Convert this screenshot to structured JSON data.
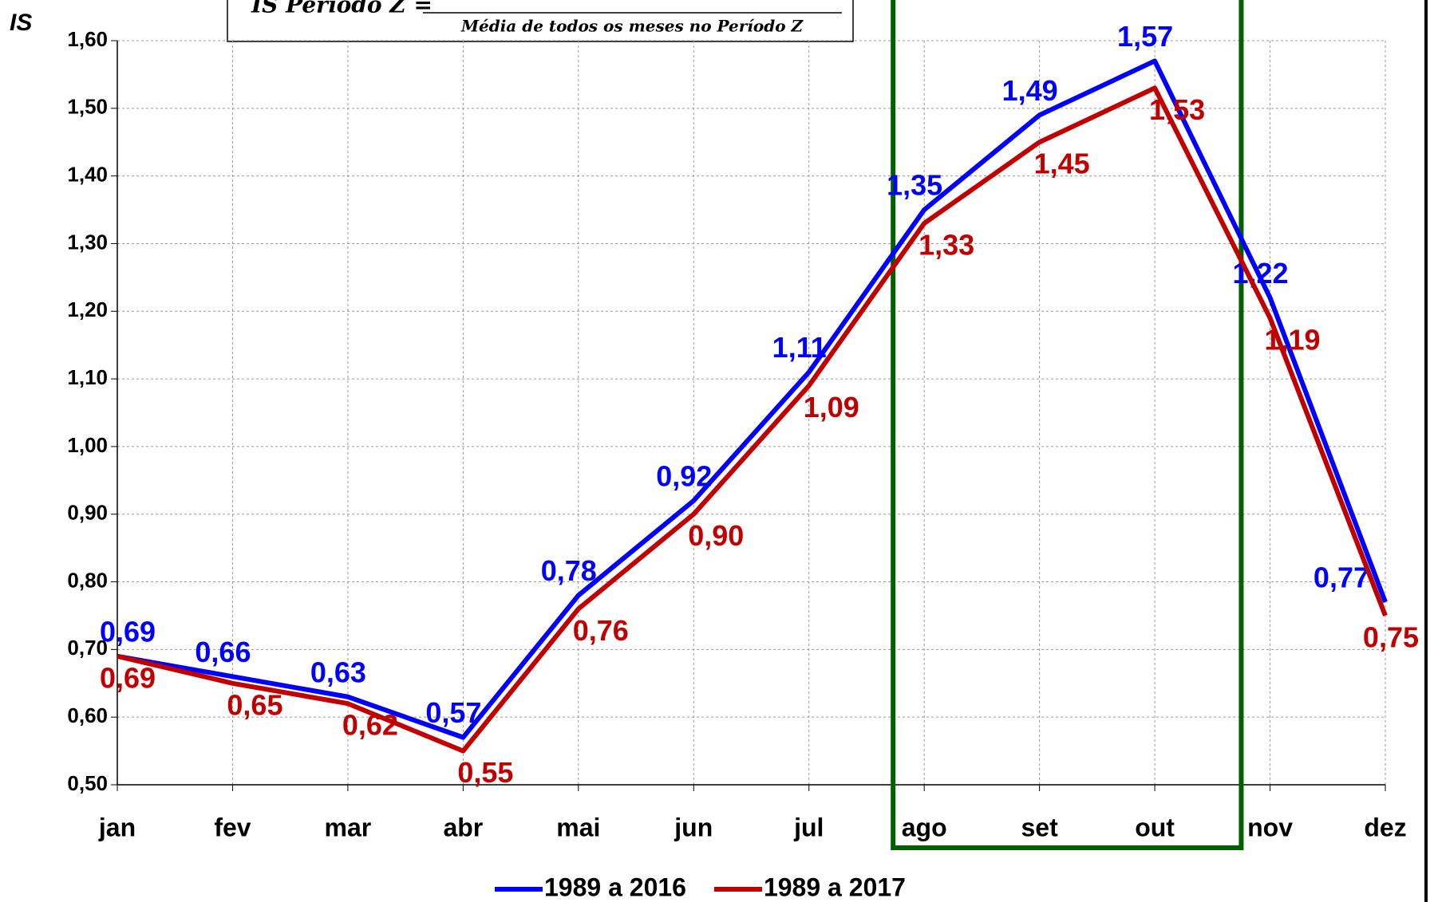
{
  "chart_data": {
    "type": "line",
    "y_label": "IS",
    "formula_left": "IS Período Z =",
    "formula_denominator": "Média de todos os meses no Período Z",
    "categories": [
      "jan",
      "fev",
      "mar",
      "abr",
      "mai",
      "jun",
      "jul",
      "ago",
      "set",
      "out",
      "nov",
      "dez"
    ],
    "series": [
      {
        "name": "1989 a 2016",
        "color": "#0000ff",
        "values": [
          0.69,
          0.66,
          0.63,
          0.57,
          0.78,
          0.92,
          1.11,
          1.35,
          1.49,
          1.57,
          1.22,
          0.77
        ],
        "value_labels": [
          "0,69",
          "0,66",
          "0,63",
          "0,57",
          "0,78",
          "0,92",
          "1,11",
          "1,35",
          "1,49",
          "1,57",
          "1,22",
          "0,77"
        ]
      },
      {
        "name": "1989 a 2017",
        "color": "#c00000",
        "values": [
          0.69,
          0.65,
          0.62,
          0.55,
          0.76,
          0.9,
          1.09,
          1.33,
          1.45,
          1.53,
          1.19,
          0.75
        ],
        "value_labels": [
          "0,69",
          "0,65",
          "0,62",
          "0,55",
          "0,76",
          "0,90",
          "1,09",
          "1,33",
          "1,45",
          "1,53",
          "1,19",
          "0,75"
        ]
      }
    ],
    "ylim": [
      0.5,
      1.6
    ],
    "yticks": [
      {
        "value": 0.5,
        "label": "0,50"
      },
      {
        "value": 0.6,
        "label": "0,60"
      },
      {
        "value": 0.7,
        "label": "0,70"
      },
      {
        "value": 0.8,
        "label": "0,80"
      },
      {
        "value": 0.9,
        "label": "0,90"
      },
      {
        "value": 1.0,
        "label": "1,00"
      },
      {
        "value": 1.1,
        "label": "1,10"
      },
      {
        "value": 1.2,
        "label": "1,20"
      },
      {
        "value": 1.3,
        "label": "1,30"
      },
      {
        "value": 1.4,
        "label": "1,40"
      },
      {
        "value": 1.5,
        "label": "1,50"
      },
      {
        "value": 1.6,
        "label": "1,60"
      }
    ],
    "grid": true,
    "legend": "bottom"
  }
}
